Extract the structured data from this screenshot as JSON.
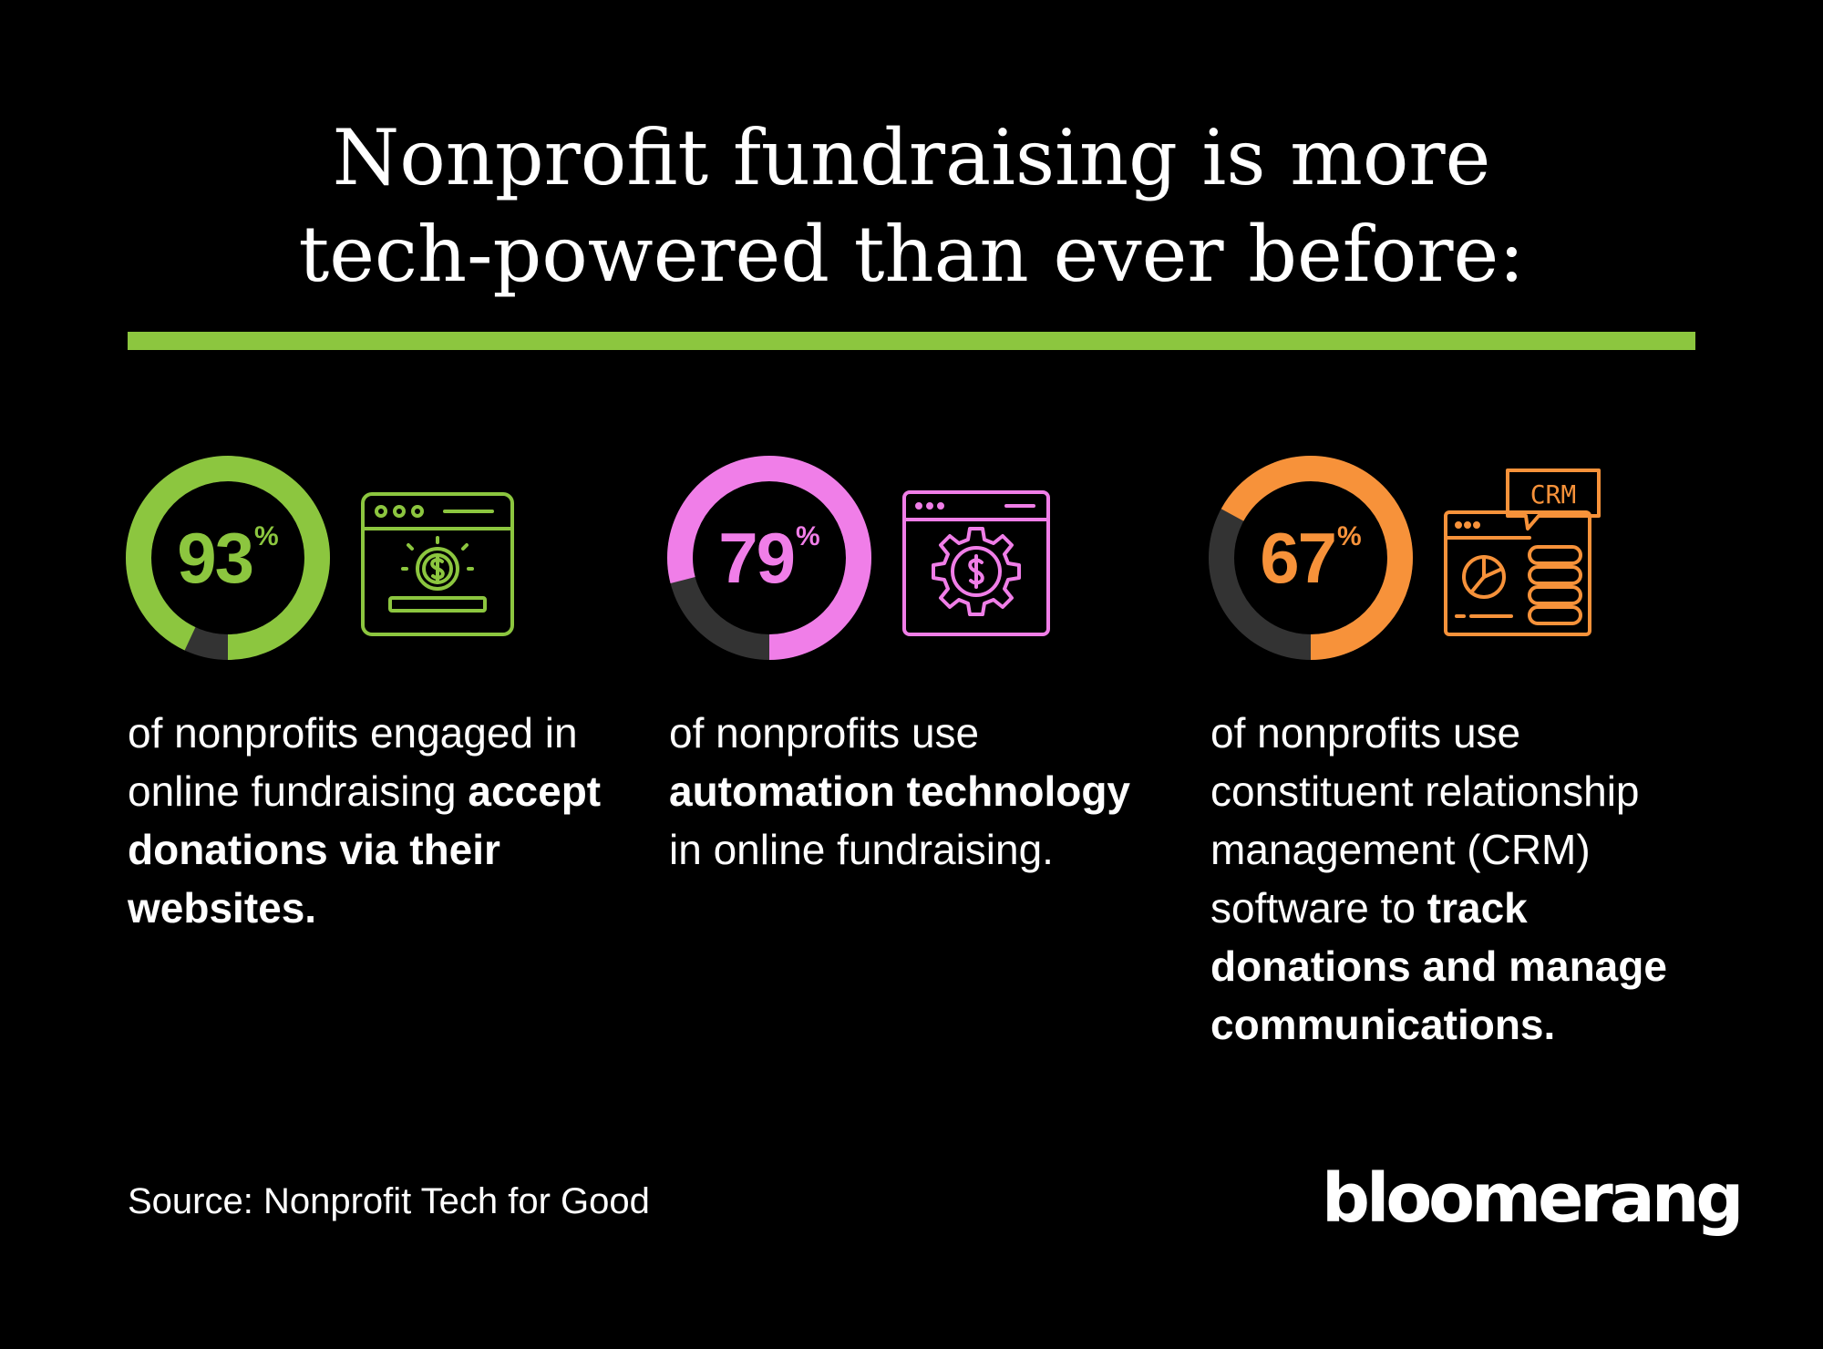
{
  "title": {
    "line1": "Nonprofit fundraising is more",
    "line2": "tech-powered than ever before:"
  },
  "colors": {
    "background": "#000000",
    "divider": "#8cc63f",
    "green": "#8cc63f",
    "pink": "#f07ee8",
    "orange": "#f7923a",
    "track": "#333333"
  },
  "stats": [
    {
      "value": "93",
      "percent_sign": "%",
      "fraction": 0.93,
      "color": "#8cc63f",
      "icon": "website-donation-icon",
      "desc_parts": [
        {
          "text": "of nonprofits engaged in online fundraising ",
          "bold": false
        },
        {
          "text": "accept donations via their websites.",
          "bold": true
        }
      ]
    },
    {
      "value": "79",
      "percent_sign": "%",
      "fraction": 0.79,
      "color": "#f07ee8",
      "icon": "automation-gear-dollar-icon",
      "desc_parts": [
        {
          "text": "of nonprofits use ",
          "bold": false
        },
        {
          "text": "automation technology",
          "bold": true
        },
        {
          "text": " in online fundraising.",
          "bold": false
        }
      ]
    },
    {
      "value": "67",
      "percent_sign": "%",
      "fraction": 0.67,
      "color": "#f7923a",
      "icon": "crm-dashboard-icon",
      "icon_label": "CRM",
      "desc_parts": [
        {
          "text": "of nonprofits use constituent relationship management (CRM) software to ",
          "bold": false
        },
        {
          "text": "track donations and manage communications.",
          "bold": true
        }
      ]
    }
  ],
  "source": "Source: Nonprofit Tech for Good",
  "logo": "bloomerang"
}
